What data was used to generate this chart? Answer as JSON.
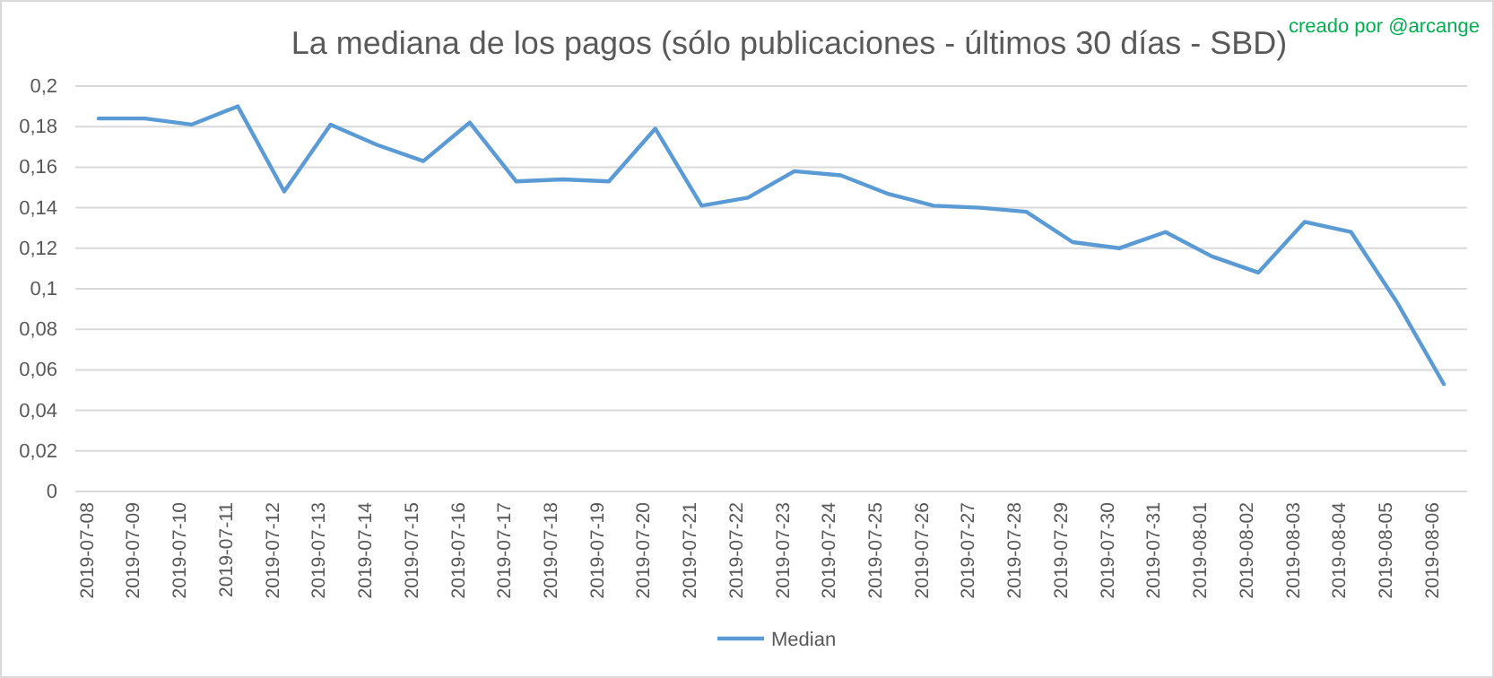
{
  "chart_data": {
    "type": "line",
    "title": "La mediana de los pagos (sólo publicaciones - últimos 30 días - SBD)",
    "annotations": [
      "creado por @arcange"
    ],
    "categories": [
      "2019-07-08",
      "2019-07-09",
      "2019-07-10",
      "2019-07-11",
      "2019-07-12",
      "2019-07-13",
      "2019-07-14",
      "2019-07-15",
      "2019-07-16",
      "2019-07-17",
      "2019-07-18",
      "2019-07-19",
      "2019-07-20",
      "2019-07-21",
      "2019-07-22",
      "2019-07-23",
      "2019-07-24",
      "2019-07-25",
      "2019-07-26",
      "2019-07-27",
      "2019-07-28",
      "2019-07-29",
      "2019-07-30",
      "2019-07-31",
      "2019-08-01",
      "2019-08-02",
      "2019-08-03",
      "2019-08-04",
      "2019-08-05",
      "2019-08-06"
    ],
    "series": [
      {
        "name": "Median",
        "color": "#5b9bd5",
        "values": [
          0.184,
          0.184,
          0.181,
          0.19,
          0.148,
          0.181,
          0.171,
          0.163,
          0.182,
          0.153,
          0.154,
          0.153,
          0.179,
          0.141,
          0.145,
          0.158,
          0.156,
          0.147,
          0.141,
          0.14,
          0.138,
          0.123,
          0.12,
          0.128,
          0.116,
          0.108,
          0.133,
          0.128,
          0.093,
          0.053
        ]
      }
    ],
    "ylim": [
      0,
      0.2
    ],
    "yticks": [
      {
        "value": 0,
        "label": "0"
      },
      {
        "value": 0.02,
        "label": "0,02"
      },
      {
        "value": 0.04,
        "label": "0,04"
      },
      {
        "value": 0.06,
        "label": "0,06"
      },
      {
        "value": 0.08,
        "label": "0,08"
      },
      {
        "value": 0.1,
        "label": "0,1"
      },
      {
        "value": 0.12,
        "label": "0,12"
      },
      {
        "value": 0.14,
        "label": "0,14"
      },
      {
        "value": 0.16,
        "label": "0,16"
      },
      {
        "value": 0.18,
        "label": "0,18"
      },
      {
        "value": 0.2,
        "label": "0,2"
      }
    ],
    "grid": "y",
    "legend": "bottom",
    "marker": "none",
    "line_style": "solid"
  }
}
